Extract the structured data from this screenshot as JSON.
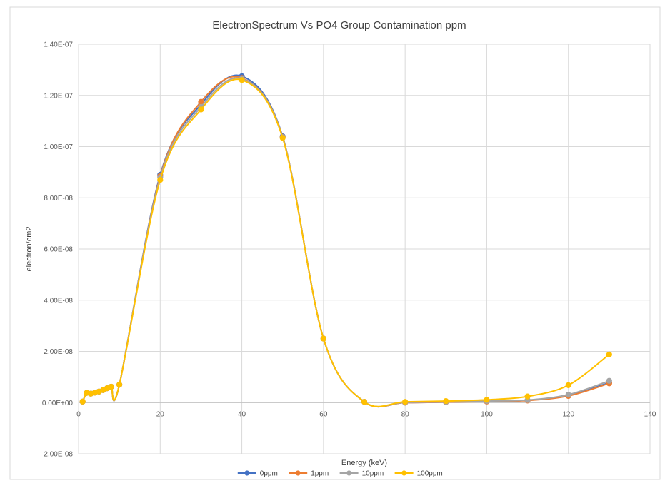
{
  "chart_data": {
    "type": "line",
    "title": "ElectronSpectrum  Vs PO4 Group Contamination ppm",
    "xlabel": "Energy (keV)",
    "ylabel": "electron/cm2",
    "xlim": [
      0,
      140
    ],
    "ylim": [
      -2e-08,
      1.4e-07
    ],
    "x_ticks": [
      0,
      20,
      40,
      60,
      80,
      100,
      120,
      140
    ],
    "x_tick_labels": [
      "0",
      "20",
      "40",
      "60",
      "80",
      "100",
      "120",
      "140"
    ],
    "y_ticks": [
      -2e-08,
      0,
      2e-08,
      4e-08,
      6e-08,
      8e-08,
      1e-07,
      1.2e-07,
      1.4e-07
    ],
    "y_tick_labels": [
      "-2.00E-08",
      "0.00E+00",
      "2.00E-08",
      "4.00E-08",
      "6.00E-08",
      "8.00E-08",
      "1.00E-07",
      "1.20E-07",
      "1.40E-07"
    ],
    "grid": true,
    "legend_position": "bottom",
    "smooth": true,
    "x": [
      1,
      2,
      3,
      4,
      5,
      6,
      7,
      8,
      10,
      20,
      30,
      40,
      50,
      60,
      70,
      80,
      90,
      100,
      110,
      120,
      130
    ],
    "series": [
      {
        "name": "0ppm",
        "color": "#4472c4",
        "values": [
          4e-10,
          3.8e-09,
          3.5e-09,
          3.9e-09,
          4.3e-09,
          4.9e-09,
          5.6e-09,
          6.2e-09,
          7e-09,
          8.9e-08,
          1.165e-07,
          1.275e-07,
          1.04e-07,
          2.5e-08,
          3e-10,
          0,
          2e-10,
          5e-10,
          9e-10,
          2.8e-09,
          7.8e-09
        ]
      },
      {
        "name": "1ppm",
        "color": "#ed7d31",
        "values": [
          4e-10,
          3.8e-09,
          3.5e-09,
          3.9e-09,
          4.3e-09,
          4.9e-09,
          5.6e-09,
          6.2e-09,
          7e-09,
          8.85e-08,
          1.175e-07,
          1.268e-07,
          1.038e-07,
          2.5e-08,
          3e-10,
          0,
          2e-10,
          4e-10,
          8e-10,
          2.6e-09,
          7.5e-09
        ]
      },
      {
        "name": "10ppm",
        "color": "#a5a5a5",
        "values": [
          4e-10,
          3.8e-09,
          3.5e-09,
          3.9e-09,
          4.3e-09,
          4.9e-09,
          5.6e-09,
          6.2e-09,
          7e-09,
          8.8e-08,
          1.155e-07,
          1.265e-07,
          1.037e-07,
          2.5e-08,
          3e-10,
          1e-10,
          3e-10,
          6e-10,
          1e-09,
          3.1e-09,
          8.5e-09
        ]
      },
      {
        "name": "100ppm",
        "color": "#ffc000",
        "values": [
          4e-10,
          3.8e-09,
          3.5e-09,
          3.9e-09,
          4.3e-09,
          4.9e-09,
          5.6e-09,
          6.2e-09,
          7e-09,
          8.7e-08,
          1.145e-07,
          1.26e-07,
          1.034e-07,
          2.5e-08,
          3e-10,
          3e-10,
          6e-10,
          1.1e-09,
          2.4e-09,
          6.8e-09,
          1.88e-08
        ]
      }
    ]
  }
}
